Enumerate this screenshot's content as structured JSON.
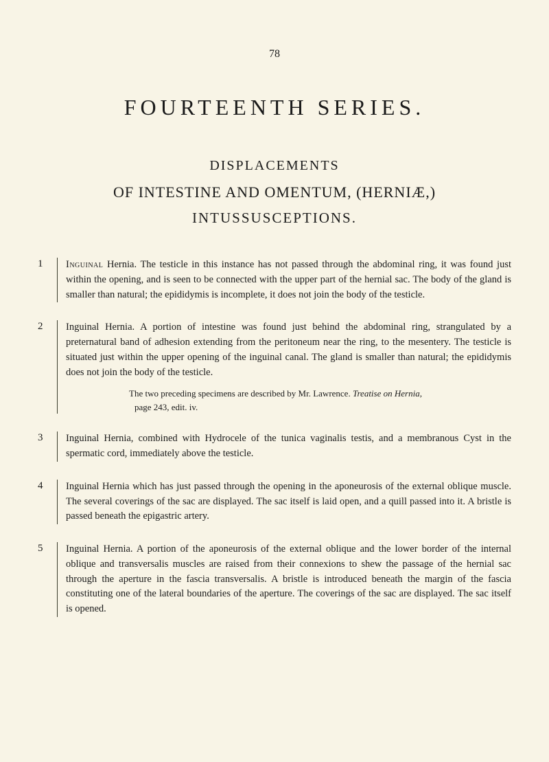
{
  "page_number": "78",
  "main_title": "FOURTEENTH SERIES.",
  "sub_title_1": "DISPLACEMENTS",
  "sub_title_2": "OF INTESTINE AND OMENTUM, (HERNIÆ,)",
  "sub_title_3": "INTUSSUSCEPTIONS.",
  "entries": [
    {
      "num": "1",
      "paragraphs": [
        {
          "lead": "Inguinal",
          "text": " Hernia. The testicle in this instance has not passed through the abdominal ring, it was found just within the opening, and is seen to be connected with the upper part of the hernial sac. The body of the gland is smaller than natural; the epididymis is incomplete, it does not join the body of the testicle."
        }
      ]
    },
    {
      "num": "2",
      "paragraphs": [
        {
          "lead": "",
          "text": "Inguinal Hernia. A portion of intestine was found just behind the abdominal ring, strangulated by a preternatural band of adhesion extending from the peritoneum near the ring, to the mesentery. The testicle is situated just within the upper opening of the inguinal canal. The gland is smaller than natural; the epididymis does not join the body of the testicle."
        }
      ],
      "note_line1_pre": "The two preceding specimens are described by Mr. Lawrence. ",
      "note_line1_italic": "Treatise on Hernia,",
      "note_line2": "page 243, edit. iv."
    },
    {
      "num": "3",
      "paragraphs": [
        {
          "lead": "",
          "text": "Inguinal Hernia, combined with Hydrocele of the tunica vaginalis testis, and a membranous Cyst in the spermatic cord, immediately above the testicle."
        }
      ]
    },
    {
      "num": "4",
      "paragraphs": [
        {
          "lead": "",
          "text": "Inguinal Hernia which has just passed through the opening in the aponeurosis of the external oblique muscle. The several coverings of the sac are displayed. The sac itself is laid open, and a quill passed into it. A bristle is passed beneath the epigastric artery."
        }
      ]
    },
    {
      "num": "5",
      "paragraphs": [
        {
          "lead": "",
          "text": "Inguinal Hernia. A portion of the aponeurosis of the external oblique and the lower border of the internal oblique and transversalis muscles are raised from their connexions to shew the passage of the hernial sac through the aperture in the fascia transversalis. A bristle is introduced beneath the margin of the fascia constituting one of the lateral boundaries of the aperture. The coverings of the sac are displayed. The sac itself is opened."
        }
      ]
    }
  ]
}
